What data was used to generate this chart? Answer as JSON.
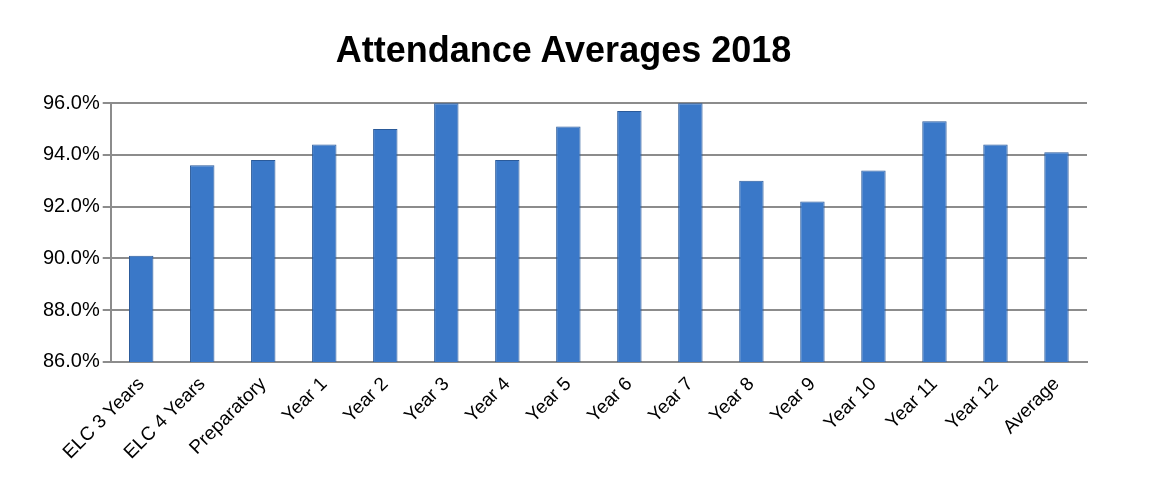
{
  "chart_data": {
    "type": "bar",
    "title": "Attendance Averages 2018",
    "categories": [
      "ELC 3 Years",
      "ELC 4 Years",
      "Preparatory",
      "Year 1",
      "Year 2",
      "Year 3",
      "Year 4",
      "Year 5",
      "Year 6",
      "Year 7",
      "Year 8",
      "Year 9",
      "Year 10",
      "Year 11",
      "Year 12",
      "Average"
    ],
    "values": [
      90.1,
      93.6,
      93.8,
      94.4,
      95.0,
      96.0,
      93.8,
      95.1,
      95.7,
      96.0,
      93.0,
      92.2,
      93.4,
      95.3,
      94.4,
      94.1
    ],
    "color": "#3a78c8",
    "ylim": [
      86,
      96
    ],
    "yticks": [
      {
        "value": 86,
        "label": "86.0%"
      },
      {
        "value": 88,
        "label": "88.0%"
      },
      {
        "value": 90,
        "label": "90.0%"
      },
      {
        "value": 92,
        "label": "92.0%"
      },
      {
        "value": 94,
        "label": "94.0%"
      },
      {
        "value": 96,
        "label": "96.0%"
      }
    ],
    "grid": "y",
    "legend": false
  }
}
